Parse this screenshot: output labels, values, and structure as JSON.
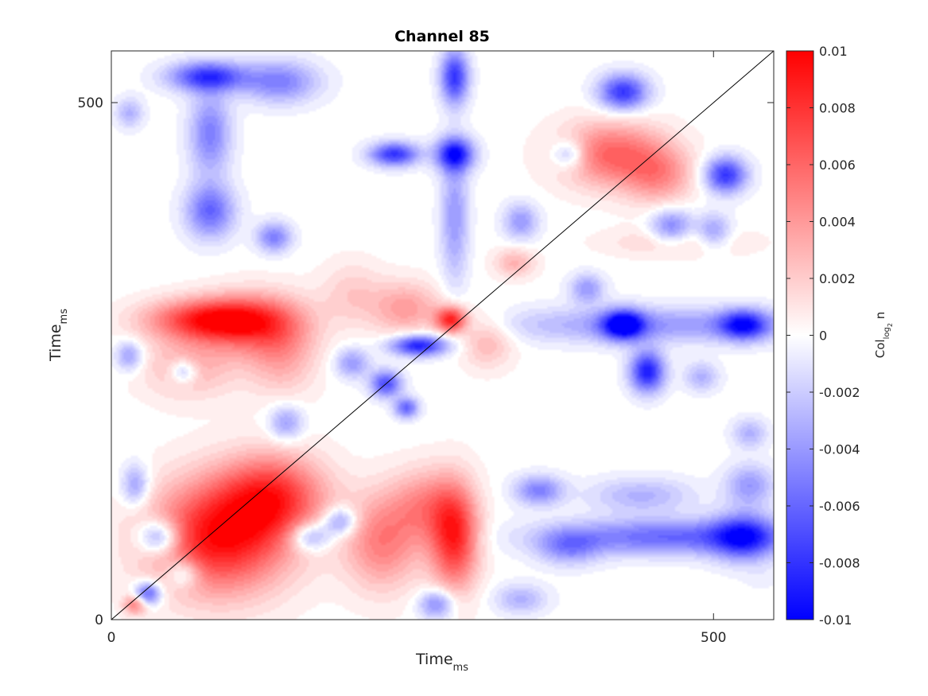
{
  "chart_data": {
    "type": "heatmap",
    "title": "Channel 85",
    "xlabel": {
      "main": "Time",
      "sub": "ms"
    },
    "ylabel": {
      "main": "Time",
      "sub": "ms"
    },
    "xlim": [
      0,
      550
    ],
    "ylim": [
      0,
      550
    ],
    "x_ticks": [
      0,
      500
    ],
    "y_ticks": [
      0,
      500
    ],
    "diagonal_line": true,
    "colorbar": {
      "label_main": "Col",
      "label_sub": "log",
      "label_subsub": "2",
      "label_tail": " n",
      "limits": [
        -0.01,
        0.01
      ],
      "ticks": [
        -0.01,
        -0.008,
        -0.006,
        -0.004,
        -0.002,
        0,
        0.002,
        0.004,
        0.006,
        0.008,
        0.01
      ],
      "tick_labels": [
        "-0.01",
        "-0.008",
        "-0.006",
        "-0.004",
        "-0.002",
        "0",
        "0.002",
        "0.004",
        "0.006",
        "0.008",
        "0.01"
      ],
      "colors": {
        "low": "#0000ff",
        "mid": "#ffffff",
        "high": "#ff0000"
      }
    },
    "blobs": [
      {
        "x": 90,
        "y": 80,
        "v": 0.0095,
        "sx": 40,
        "sy": 38
      },
      {
        "x": 135,
        "y": 120,
        "v": 0.007,
        "sx": 30,
        "sy": 28
      },
      {
        "x": 82,
        "y": 290,
        "v": 0.0085,
        "sx": 36,
        "sy": 14
      },
      {
        "x": 120,
        "y": 285,
        "v": 0.005,
        "sx": 30,
        "sy": 22
      },
      {
        "x": 65,
        "y": 245,
        "v": 0.003,
        "sx": 28,
        "sy": 22
      },
      {
        "x": 142,
        "y": 255,
        "v": 0.003,
        "sx": 20,
        "sy": 28
      },
      {
        "x": 285,
        "y": 80,
        "v": 0.0085,
        "sx": 14,
        "sy": 35
      },
      {
        "x": 225,
        "y": 75,
        "v": 0.005,
        "sx": 22,
        "sy": 32
      },
      {
        "x": 260,
        "y": 110,
        "v": 0.004,
        "sx": 20,
        "sy": 25
      },
      {
        "x": 282,
        "y": 290,
        "v": 0.009,
        "sx": 9,
        "sy": 9
      },
      {
        "x": 245,
        "y": 300,
        "v": 0.004,
        "sx": 20,
        "sy": 18
      },
      {
        "x": 312,
        "y": 270,
        "v": 0.003,
        "sx": 15,
        "sy": 18
      },
      {
        "x": 415,
        "y": 450,
        "v": 0.006,
        "sx": 30,
        "sy": 22
      },
      {
        "x": 455,
        "y": 430,
        "v": 0.004,
        "sx": 20,
        "sy": 20
      },
      {
        "x": 335,
        "y": 345,
        "v": 0.003,
        "sx": 12,
        "sy": 10
      },
      {
        "x": 470,
        "y": 365,
        "v": 0.002,
        "sx": 40,
        "sy": 10
      },
      {
        "x": 20,
        "y": 15,
        "v": 0.005,
        "sx": 7,
        "sy": 7
      },
      {
        "x": 200,
        "y": 315,
        "v": 0.002,
        "sx": 18,
        "sy": 22
      },
      {
        "x": 540,
        "y": 40,
        "v": -0.0005,
        "sx": 10,
        "sy": 10
      },
      {
        "x": 80,
        "y": 525,
        "v": -0.008,
        "sx": 22,
        "sy": 10
      },
      {
        "x": 140,
        "y": 520,
        "v": -0.005,
        "sx": 22,
        "sy": 14
      },
      {
        "x": 82,
        "y": 470,
        "v": -0.005,
        "sx": 12,
        "sy": 28
      },
      {
        "x": 82,
        "y": 395,
        "v": -0.006,
        "sx": 14,
        "sy": 18
      },
      {
        "x": 135,
        "y": 370,
        "v": -0.005,
        "sx": 10,
        "sy": 10
      },
      {
        "x": 285,
        "y": 525,
        "v": -0.008,
        "sx": 8,
        "sy": 18
      },
      {
        "x": 285,
        "y": 450,
        "v": -0.009,
        "sx": 11,
        "sy": 11
      },
      {
        "x": 285,
        "y": 390,
        "v": -0.004,
        "sx": 8,
        "sy": 45
      },
      {
        "x": 235,
        "y": 450,
        "v": -0.008,
        "sx": 14,
        "sy": 8
      },
      {
        "x": 255,
        "y": 265,
        "v": -0.009,
        "sx": 16,
        "sy": 7
      },
      {
        "x": 228,
        "y": 228,
        "v": -0.007,
        "sx": 9,
        "sy": 9
      },
      {
        "x": 245,
        "y": 205,
        "v": -0.006,
        "sx": 7,
        "sy": 7
      },
      {
        "x": 200,
        "y": 248,
        "v": -0.004,
        "sx": 10,
        "sy": 10
      },
      {
        "x": 425,
        "y": 285,
        "v": -0.01,
        "sx": 12,
        "sy": 10
      },
      {
        "x": 525,
        "y": 285,
        "v": -0.008,
        "sx": 14,
        "sy": 10
      },
      {
        "x": 450,
        "y": 285,
        "v": -0.004,
        "sx": 90,
        "sy": 12
      },
      {
        "x": 445,
        "y": 240,
        "v": -0.009,
        "sx": 10,
        "sy": 14
      },
      {
        "x": 425,
        "y": 510,
        "v": -0.008,
        "sx": 14,
        "sy": 12
      },
      {
        "x": 510,
        "y": 430,
        "v": -0.008,
        "sx": 12,
        "sy": 12
      },
      {
        "x": 465,
        "y": 380,
        "v": -0.005,
        "sx": 12,
        "sy": 12
      },
      {
        "x": 500,
        "y": 375,
        "v": -0.004,
        "sx": 10,
        "sy": 12
      },
      {
        "x": 395,
        "y": 320,
        "v": -0.004,
        "sx": 10,
        "sy": 10
      },
      {
        "x": 340,
        "y": 385,
        "v": -0.004,
        "sx": 10,
        "sy": 12
      },
      {
        "x": 380,
        "y": 450,
        "v": -0.004,
        "sx": 10,
        "sy": 10
      },
      {
        "x": 525,
        "y": 80,
        "v": -0.007,
        "sx": 18,
        "sy": 16
      },
      {
        "x": 465,
        "y": 80,
        "v": -0.006,
        "sx": 70,
        "sy": 12
      },
      {
        "x": 380,
        "y": 70,
        "v": -0.004,
        "sx": 18,
        "sy": 12
      },
      {
        "x": 530,
        "y": 130,
        "v": -0.004,
        "sx": 14,
        "sy": 14
      },
      {
        "x": 165,
        "y": 80,
        "v": -0.005,
        "sx": 12,
        "sy": 10
      },
      {
        "x": 40,
        "y": 80,
        "v": -0.006,
        "sx": 12,
        "sy": 12
      },
      {
        "x": 30,
        "y": 25,
        "v": -0.007,
        "sx": 8,
        "sy": 8
      },
      {
        "x": 60,
        "y": 45,
        "v": -0.004,
        "sx": 10,
        "sy": 10
      },
      {
        "x": 190,
        "y": 95,
        "v": -0.005,
        "sx": 10,
        "sy": 10
      },
      {
        "x": 355,
        "y": 125,
        "v": -0.005,
        "sx": 14,
        "sy": 10
      },
      {
        "x": 440,
        "y": 120,
        "v": -0.003,
        "sx": 30,
        "sy": 12
      },
      {
        "x": 270,
        "y": 15,
        "v": -0.005,
        "sx": 10,
        "sy": 10
      },
      {
        "x": 145,
        "y": 190,
        "v": -0.004,
        "sx": 10,
        "sy": 12
      },
      {
        "x": 60,
        "y": 240,
        "v": -0.004,
        "sx": 8,
        "sy": 8
      },
      {
        "x": 15,
        "y": 255,
        "v": -0.004,
        "sx": 8,
        "sy": 10
      },
      {
        "x": 20,
        "y": 130,
        "v": -0.004,
        "sx": 8,
        "sy": 14
      },
      {
        "x": 15,
        "y": 490,
        "v": -0.003,
        "sx": 8,
        "sy": 10
      },
      {
        "x": 340,
        "y": 20,
        "v": -0.003,
        "sx": 15,
        "sy": 10
      },
      {
        "x": 490,
        "y": 235,
        "v": -0.003,
        "sx": 10,
        "sy": 10
      },
      {
        "x": 530,
        "y": 180,
        "v": -0.003,
        "sx": 10,
        "sy": 10
      }
    ]
  }
}
